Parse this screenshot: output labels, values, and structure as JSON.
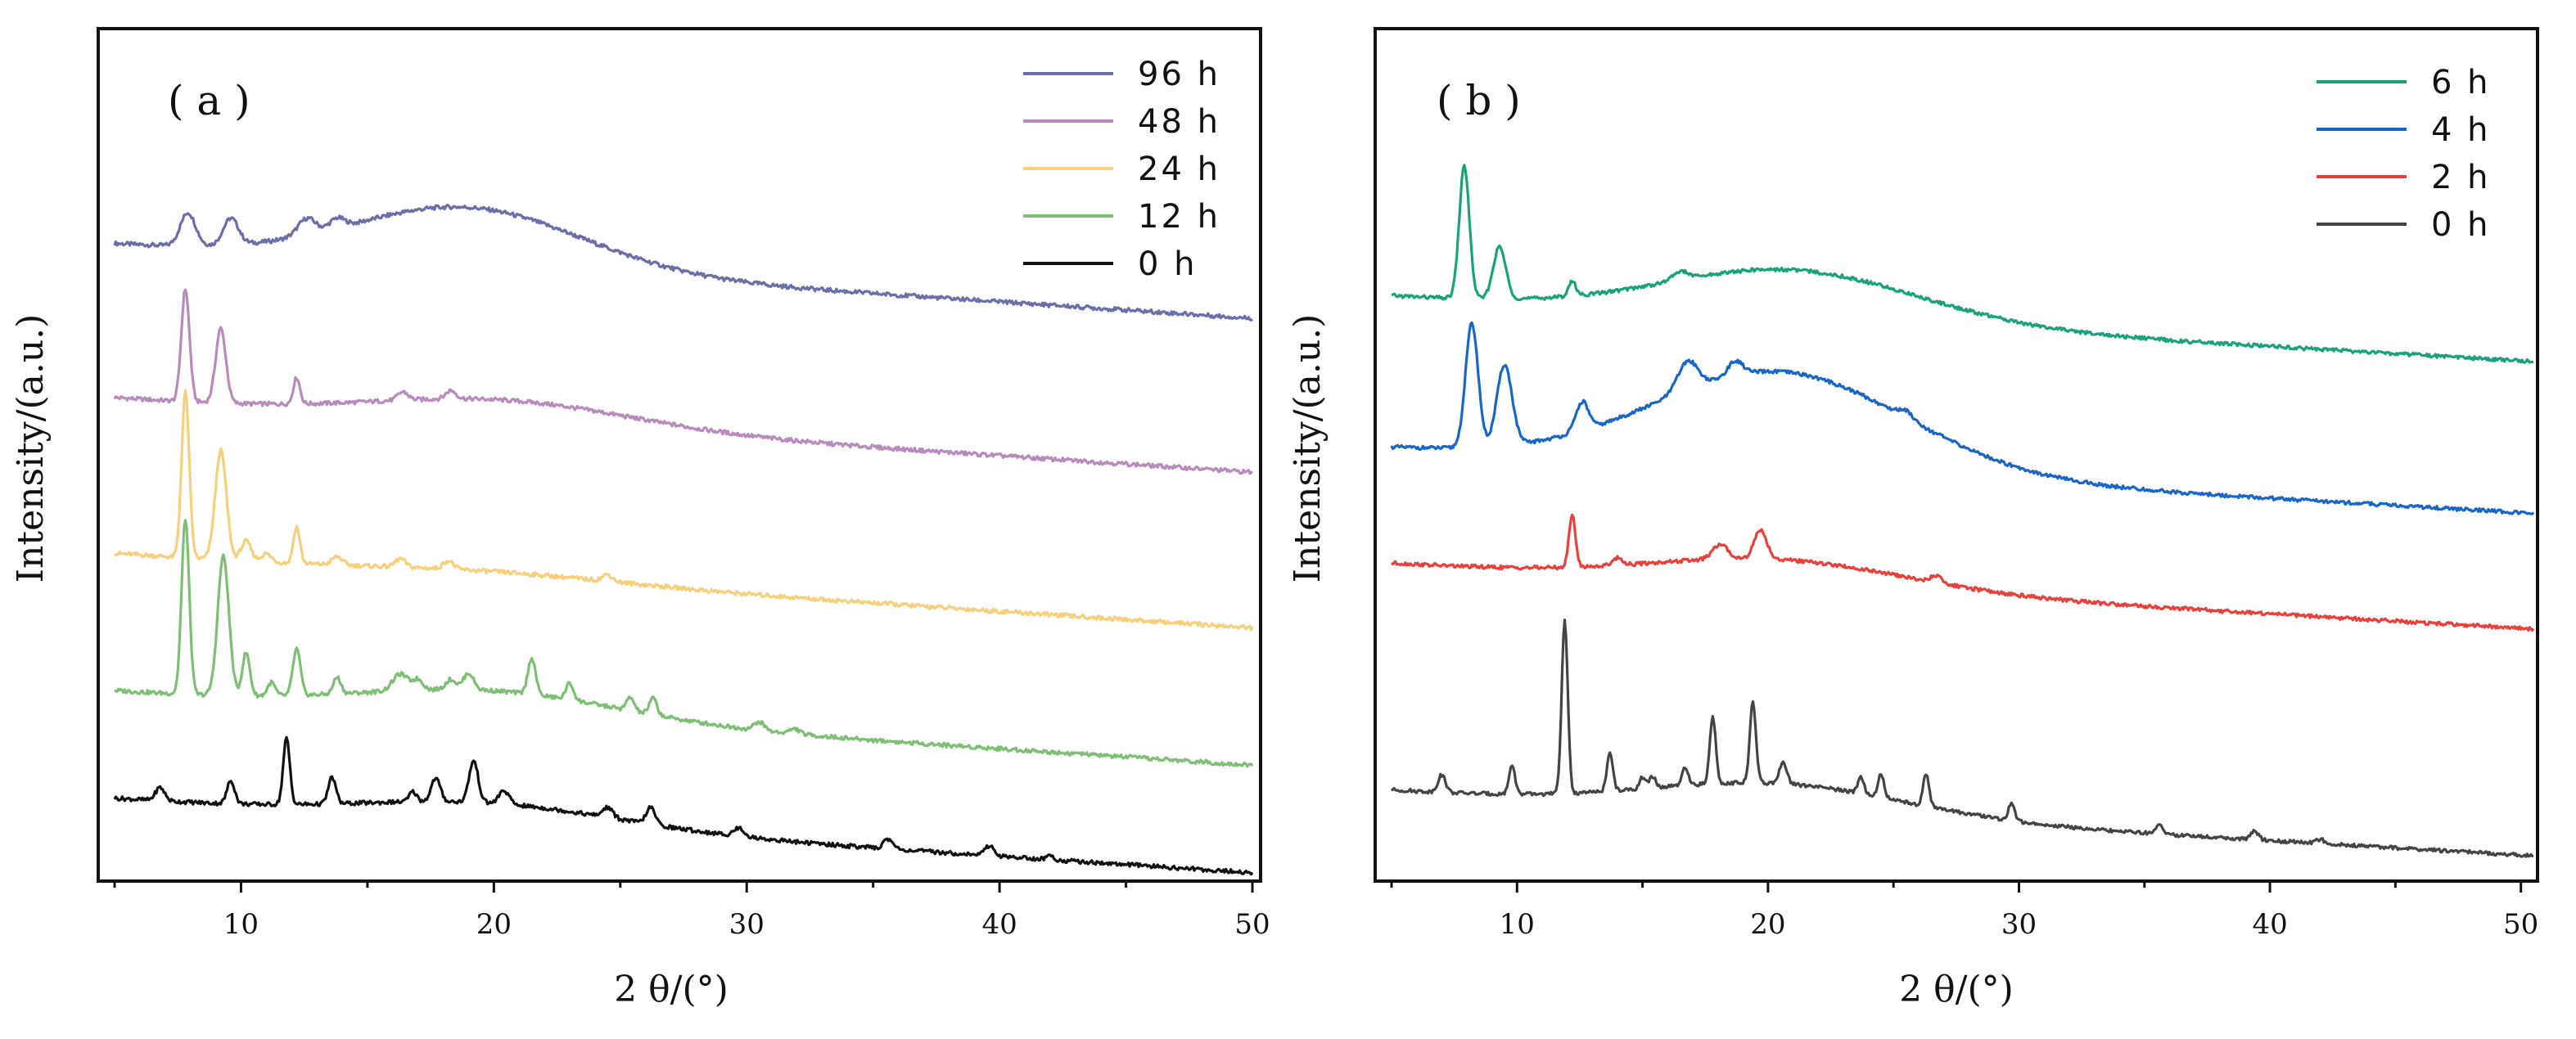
{
  "chart_data": [
    {
      "type": "line",
      "panel_label": "( a )",
      "xlabel": "2 θ/(°)",
      "ylabel": "Intensity/(a.u.)",
      "xlim": [
        5,
        50
      ],
      "xticks": [
        10,
        20,
        30,
        40,
        50
      ],
      "xtick_labels": [
        "10",
        "20",
        "30",
        "40",
        "50"
      ],
      "yticks_visible": false,
      "legend_position": "top-right",
      "legend": [
        "96 h",
        "48 h",
        "24 h",
        "12 h",
        "0 h"
      ],
      "series": [
        {
          "name": "96 h",
          "color": "#6a6faa",
          "baseline": 3.55,
          "slope": 0.0025,
          "hump": {
            "center": 19,
            "height": 0.36,
            "width": 4.5
          },
          "peaks": [
            [
              7.9,
              0.2,
              0.3
            ],
            [
              9.6,
              0.16,
              0.3
            ],
            [
              12.6,
              0.1,
              0.35
            ],
            [
              13.8,
              0.06,
              0.3
            ]
          ]
        },
        {
          "name": "48 h",
          "color": "#b98abd",
          "baseline": 2.62,
          "slope": 0.0025,
          "hump": {
            "center": 20.5,
            "height": 0.14,
            "width": 5
          },
          "peaks": [
            [
              7.8,
              0.68,
              0.16
            ],
            [
              9.2,
              0.45,
              0.2
            ],
            [
              12.2,
              0.16,
              0.13
            ],
            [
              16.4,
              0.05,
              0.2
            ],
            [
              18.3,
              0.05,
              0.2
            ]
          ]
        },
        {
          "name": "24 h",
          "color": "#f8cf7a",
          "baseline": 1.68,
          "slope": 0.0025,
          "hump": {
            "center": 20,
            "height": 0.04,
            "width": 5
          },
          "peaks": [
            [
              7.8,
              1.0,
              0.15
            ],
            [
              9.2,
              0.66,
              0.22
            ],
            [
              10.2,
              0.12,
              0.2
            ],
            [
              11.0,
              0.05,
              0.2
            ],
            [
              12.2,
              0.22,
              0.13
            ],
            [
              13.8,
              0.05,
              0.2
            ],
            [
              16.3,
              0.05,
              0.2
            ],
            [
              18.2,
              0.05,
              0.2
            ],
            [
              24.5,
              0.04,
              0.2
            ]
          ]
        },
        {
          "name": "12 h",
          "color": "#7dbf73",
          "baseline": 0.85,
          "slope": 0.0025,
          "hump": {
            "center": 20,
            "height": 0.15,
            "width": 5
          },
          "peaks": [
            [
              7.8,
              1.06,
              0.15
            ],
            [
              9.3,
              0.84,
              0.22
            ],
            [
              10.2,
              0.26,
              0.15
            ],
            [
              11.2,
              0.08,
              0.15
            ],
            [
              12.2,
              0.28,
              0.15
            ],
            [
              13.8,
              0.1,
              0.15
            ],
            [
              16.3,
              0.1,
              0.3
            ],
            [
              17.0,
              0.06,
              0.2
            ],
            [
              18.3,
              0.06,
              0.2
            ],
            [
              19.0,
              0.1,
              0.2
            ],
            [
              21.5,
              0.22,
              0.15
            ],
            [
              23.0,
              0.1,
              0.15
            ],
            [
              25.4,
              0.08,
              0.15
            ],
            [
              26.3,
              0.1,
              0.15
            ],
            [
              30.5,
              0.05,
              0.2
            ],
            [
              31.9,
              0.03,
              0.2
            ]
          ]
        },
        {
          "name": "0 h",
          "color": "#111111",
          "baseline": 0.2,
          "slope": 0.0025,
          "hump": {
            "center": 20,
            "height": 0.12,
            "width": 5
          },
          "peaks": [
            [
              6.8,
              0.08,
              0.18
            ],
            [
              9.6,
              0.14,
              0.15
            ],
            [
              11.8,
              0.4,
              0.13
            ],
            [
              13.6,
              0.16,
              0.15
            ],
            [
              16.8,
              0.06,
              0.15
            ],
            [
              17.7,
              0.14,
              0.18
            ],
            [
              19.2,
              0.25,
              0.18
            ],
            [
              20.4,
              0.08,
              0.2
            ],
            [
              24.5,
              0.06,
              0.2
            ],
            [
              26.2,
              0.1,
              0.18
            ],
            [
              29.7,
              0.05,
              0.2
            ],
            [
              35.6,
              0.06,
              0.18
            ],
            [
              39.6,
              0.06,
              0.18
            ],
            [
              42.0,
              0.02,
              0.15
            ]
          ]
        }
      ]
    },
    {
      "type": "line",
      "panel_label": "( b )",
      "xlabel": "2 θ/(°)",
      "ylabel": "Intensity/(a.u.)",
      "xlim": [
        5,
        50.5
      ],
      "xticks": [
        10,
        20,
        30,
        40,
        50
      ],
      "xtick_labels": [
        "10",
        "20",
        "30",
        "40",
        "50"
      ],
      "yticks_visible": false,
      "legend_position": "top-right",
      "legend": [
        "6 h",
        "4 h",
        "2 h",
        "0 h"
      ],
      "series": [
        {
          "name": "6 h",
          "color": "#1aa37a",
          "baseline": 3.6,
          "slope": 0.0025,
          "hump": {
            "center": 21,
            "height": 0.34,
            "width": 5
          },
          "peaks": [
            [
              7.9,
              0.92,
              0.2
            ],
            [
              9.3,
              0.36,
              0.25
            ],
            [
              12.2,
              0.1,
              0.15
            ],
            [
              16.5,
              0.06,
              0.3
            ]
          ]
        },
        {
          "name": "4 h",
          "color": "#1866c8",
          "baseline": 2.55,
          "slope": 0.0025,
          "hump": {
            "center": 20.5,
            "height": 0.68,
            "width": 5
          },
          "peaks": [
            [
              8.2,
              0.86,
              0.25
            ],
            [
              9.5,
              0.56,
              0.3
            ],
            [
              12.6,
              0.2,
              0.25
            ],
            [
              16.8,
              0.2,
              0.4
            ],
            [
              18.7,
              0.1,
              0.3
            ],
            [
              25.5,
              0.05,
              0.3
            ]
          ]
        },
        {
          "name": "2 h",
          "color": "#e8413b",
          "baseline": 1.75,
          "slope": 0.0025,
          "hump": {
            "center": 20.5,
            "height": 0.18,
            "width": 5
          },
          "peaks": [
            [
              12.2,
              0.36,
              0.13
            ],
            [
              14.0,
              0.05,
              0.2
            ],
            [
              18.1,
              0.1,
              0.3
            ],
            [
              19.7,
              0.2,
              0.25
            ],
            [
              26.7,
              0.05,
              0.2
            ]
          ]
        },
        {
          "name": "0 h",
          "color": "#444444",
          "baseline": 0.18,
          "slope": 0.0025,
          "hump": {
            "center": 20.5,
            "height": 0.2,
            "width": 5
          },
          "peaks": [
            [
              7.0,
              0.12,
              0.15
            ],
            [
              9.8,
              0.2,
              0.12
            ],
            [
              11.9,
              1.2,
              0.12
            ],
            [
              13.7,
              0.26,
              0.12
            ],
            [
              15.0,
              0.08,
              0.12
            ],
            [
              15.4,
              0.08,
              0.12
            ],
            [
              16.7,
              0.12,
              0.12
            ],
            [
              17.8,
              0.46,
              0.12
            ],
            [
              19.4,
              0.56,
              0.12
            ],
            [
              20.6,
              0.14,
              0.15
            ],
            [
              23.7,
              0.12,
              0.12
            ],
            [
              24.5,
              0.16,
              0.12
            ],
            [
              26.3,
              0.22,
              0.12
            ],
            [
              29.7,
              0.12,
              0.12
            ],
            [
              35.6,
              0.06,
              0.15
            ],
            [
              39.4,
              0.06,
              0.15
            ],
            [
              42.0,
              0.03,
              0.15
            ]
          ]
        }
      ]
    }
  ]
}
